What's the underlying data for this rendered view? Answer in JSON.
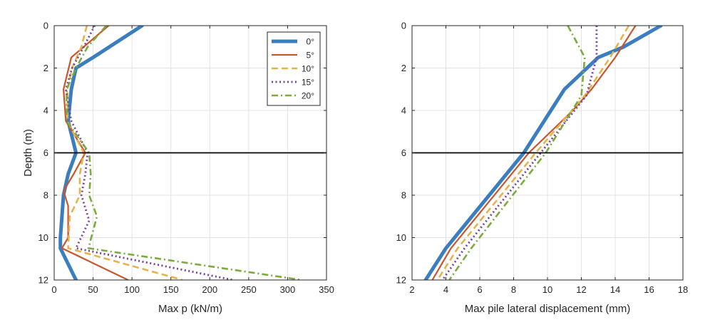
{
  "colors": {
    "0deg": "#3a7ebf",
    "5deg": "#c8552b",
    "10deg": "#e6b34a",
    "15deg": "#7a3f9b",
    "20deg": "#7bab3c",
    "hline": "#000000",
    "grid": "#e3e3e3",
    "axis": "#262626"
  },
  "chart_data": [
    {
      "type": "line",
      "xlabel": "Max p (kN/m)",
      "ylabel": "Depth (m)",
      "xlim": [
        0,
        350
      ],
      "ylim": [
        0,
        12
      ],
      "y_reversed": true,
      "xticks": [
        0,
        50,
        100,
        150,
        200,
        250,
        300,
        350
      ],
      "yticks": [
        0,
        2,
        4,
        6,
        8,
        10,
        12
      ],
      "grid": true,
      "hline": 6,
      "legend_position": "top-right",
      "series": [
        {
          "name": "0°",
          "color_key": "0deg",
          "style": "solid-thick",
          "x": [
            113,
            50,
            28,
            22,
            18,
            28,
            18,
            12,
            10,
            8,
            8,
            28
          ],
          "y": [
            0,
            1.5,
            2,
            3,
            4.5,
            6,
            7,
            8,
            9,
            10,
            10.5,
            12
          ]
        },
        {
          "name": "5°",
          "color_key": "5deg",
          "style": "solid",
          "x": [
            70,
            22,
            12,
            15,
            40,
            25,
            12,
            18,
            18,
            10,
            95
          ],
          "y": [
            0,
            1.5,
            3,
            4.5,
            6,
            7,
            7.8,
            8.5,
            10,
            10.5,
            12
          ]
        },
        {
          "name": "10°",
          "color_key": "10deg",
          "style": "dashed",
          "x": [
            42,
            35,
            23,
            17,
            17,
            38,
            33,
            33,
            20,
            18,
            165
          ],
          "y": [
            0,
            1,
            2,
            3,
            4.5,
            6,
            7,
            8,
            9,
            10.5,
            12
          ]
        },
        {
          "name": "15°",
          "color_key": "15deg",
          "style": "dotted",
          "x": [
            52,
            38,
            23,
            15,
            22,
            43,
            40,
            35,
            45,
            28,
            230
          ],
          "y": [
            0,
            1,
            2,
            3,
            4.5,
            6,
            7,
            8,
            9.2,
            10.5,
            12
          ]
        },
        {
          "name": "20°",
          "color_key": "20deg",
          "style": "dashdot",
          "x": [
            67,
            43,
            28,
            16,
            16,
            45,
            47,
            45,
            55,
            44,
            318
          ],
          "y": [
            0,
            1,
            2,
            3,
            4.5,
            6,
            7,
            8,
            9,
            10.5,
            12
          ]
        }
      ]
    },
    {
      "type": "line",
      "xlabel": "Max pile lateral displacement (mm)",
      "ylabel": "",
      "xlim": [
        2,
        18
      ],
      "ylim": [
        0,
        12
      ],
      "y_reversed": true,
      "xticks": [
        2,
        4,
        6,
        8,
        10,
        12,
        14,
        16,
        18
      ],
      "yticks": [
        0,
        2,
        4,
        6,
        8,
        10,
        12
      ],
      "grid": true,
      "hline": 6,
      "series": [
        {
          "name": "0°",
          "color_key": "0deg",
          "style": "solid-thick",
          "x": [
            16.7,
            14.5,
            13,
            11,
            8.6,
            4,
            2.8
          ],
          "y": [
            0,
            1,
            1.5,
            3,
            6,
            10.5,
            12
          ]
        },
        {
          "name": "5°",
          "color_key": "5deg",
          "style": "solid",
          "x": [
            15.2,
            14,
            12.6,
            11.5,
            8.9,
            4.3,
            3.2
          ],
          "y": [
            0,
            1.5,
            3,
            4,
            6,
            10.5,
            12
          ]
        },
        {
          "name": "10°",
          "color_key": "10deg",
          "style": "dashed",
          "x": [
            14.8,
            13.7,
            12.2,
            9.3,
            4.7,
            3.5
          ],
          "y": [
            0,
            1.5,
            3.3,
            6,
            10.5,
            12
          ]
        },
        {
          "name": "15°",
          "color_key": "15deg",
          "style": "dotted",
          "x": [
            12.9,
            12.9,
            12.3,
            9.6,
            5.1,
            3.8
          ],
          "y": [
            0,
            1.5,
            3.3,
            6,
            10.5,
            12
          ]
        },
        {
          "name": "20°",
          "color_key": "20deg",
          "style": "dashdot",
          "x": [
            11.2,
            12.2,
            12,
            9.9,
            5.5,
            4.2
          ],
          "y": [
            0,
            1.5,
            3.3,
            6,
            10.5,
            12
          ]
        }
      ]
    }
  ]
}
